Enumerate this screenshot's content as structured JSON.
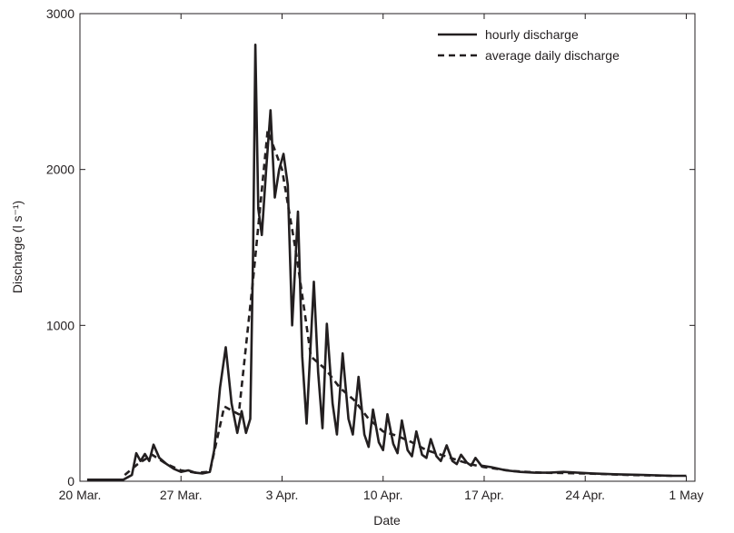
{
  "chart_data": {
    "type": "line",
    "xlabel": "Date",
    "ylabel": "Discharge (l s⁻¹)",
    "xlim": [
      0,
      42.6
    ],
    "ylim": [
      0,
      3000
    ],
    "xticks": [
      {
        "value": 0,
        "label": "20 Mar."
      },
      {
        "value": 7,
        "label": "27 Mar."
      },
      {
        "value": 14,
        "label": "3 Apr."
      },
      {
        "value": 21,
        "label": "10 Apr."
      },
      {
        "value": 28,
        "label": "17 Apr."
      },
      {
        "value": 35,
        "label": "24 Apr."
      },
      {
        "value": 42,
        "label": "1 May"
      }
    ],
    "yticks": [
      0,
      1000,
      2000,
      3000
    ],
    "legend": "top-right",
    "series": [
      {
        "name": "hourly discharge",
        "color": "#231f20",
        "linestyle": "solid",
        "x": [
          0.5,
          3,
          3.6,
          3.9,
          4.2,
          4.5,
          4.8,
          5.1,
          5.5,
          6,
          6.5,
          7,
          7.5,
          8,
          8.5,
          9,
          9.3,
          9.7,
          10.1,
          10.5,
          10.9,
          11.2,
          11.5,
          11.8,
          12.0,
          12.15,
          12.35,
          12.6,
          12.9,
          13.2,
          13.5,
          13.8,
          14.1,
          14.4,
          14.7,
          15.1,
          15.4,
          15.7,
          16.2,
          16.5,
          16.8,
          17.1,
          17.5,
          17.8,
          18.2,
          18.6,
          18.9,
          19.3,
          19.7,
          20.0,
          20.3,
          20.7,
          21.0,
          21.3,
          21.7,
          22.0,
          22.3,
          22.7,
          23.0,
          23.3,
          23.7,
          24.0,
          24.3,
          24.7,
          25.0,
          25.4,
          25.8,
          26.1,
          26.4,
          26.8,
          27.1,
          27.4,
          27.8,
          28.5,
          29.5,
          30.5,
          31.5,
          32.5,
          33.5,
          34.5,
          35.5,
          37,
          39,
          41,
          42
        ],
        "values": [
          10,
          10,
          40,
          180,
          130,
          175,
          130,
          235,
          150,
          110,
          80,
          60,
          70,
          55,
          50,
          60,
          200,
          600,
          860,
          500,
          310,
          450,
          310,
          400,
          1500,
          2800,
          1750,
          1580,
          2000,
          2380,
          1820,
          2000,
          2100,
          1900,
          1000,
          1730,
          800,
          370,
          1280,
          700,
          340,
          1010,
          500,
          300,
          820,
          400,
          300,
          670,
          300,
          220,
          460,
          250,
          200,
          430,
          240,
          180,
          390,
          200,
          160,
          320,
          170,
          150,
          270,
          160,
          130,
          230,
          130,
          110,
          170,
          120,
          100,
          150,
          100,
          90,
          70,
          60,
          55,
          55,
          60,
          55,
          50,
          45,
          40,
          35,
          35
        ]
      },
      {
        "name": "average daily discharge",
        "color": "#231f20",
        "linestyle": "dashed",
        "x": [
          3.1,
          4,
          5,
          6,
          7,
          8,
          9,
          10,
          11,
          12,
          13,
          14,
          15,
          16,
          17,
          18,
          19,
          20,
          21,
          22,
          23,
          24,
          25,
          26,
          27,
          28,
          30,
          32,
          35,
          38,
          41
        ],
        "values": [
          40,
          110,
          170,
          110,
          70,
          55,
          60,
          480,
          430,
          1300,
          2250,
          2000,
          1450,
          800,
          720,
          600,
          520,
          400,
          320,
          290,
          250,
          200,
          170,
          140,
          110,
          90,
          65,
          55,
          50,
          40,
          35
        ]
      }
    ]
  }
}
